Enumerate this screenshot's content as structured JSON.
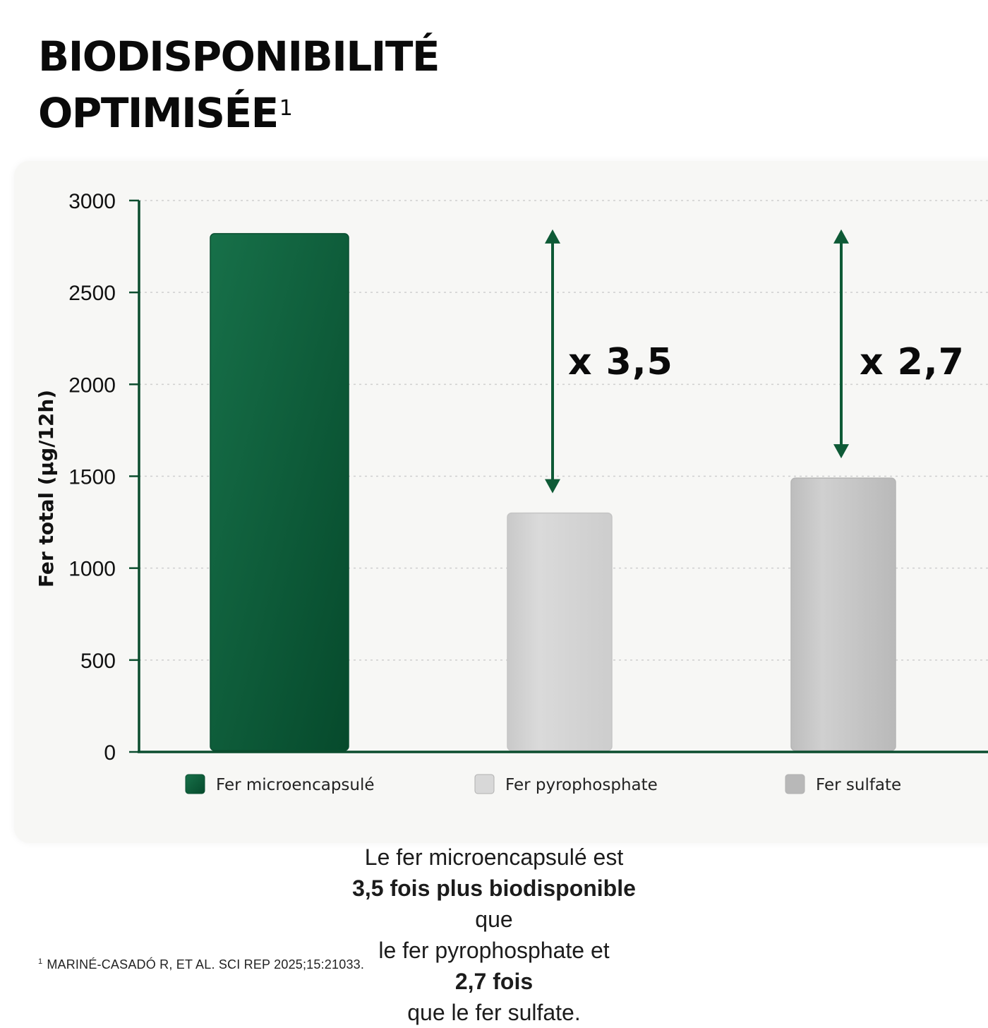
{
  "title": {
    "line1": "BIODISPONIBILITÉ",
    "line2": "OPTIMISÉE",
    "sup": "1"
  },
  "chart_data": {
    "type": "bar",
    "ylabel": "Fer total (µg/12h)",
    "ylim": [
      0,
      3000
    ],
    "yticks": [
      0,
      500,
      1000,
      1500,
      2000,
      2500,
      3000
    ],
    "grid": true,
    "legend_position": "bottom",
    "categories": [
      "Fer microencapsulé",
      "Fer pyrophosphate",
      "Fer sulfate"
    ],
    "values": [
      2820,
      1300,
      1490
    ],
    "colors": [
      "#0d5c3b",
      "#d2d2d2",
      "#c4c4c4"
    ],
    "annotations": [
      {
        "text": "x 3,5",
        "from": 2820,
        "to": 1300,
        "category": "Fer pyrophosphate"
      },
      {
        "text": "x 2,7",
        "from": 2820,
        "to": 1490,
        "category": "Fer sulfate"
      }
    ]
  },
  "caption": {
    "l1a": "Le fer microencapsulé est ",
    "l1b": "3,5 fois plus biodisponible",
    "l1c": " que",
    "l2a": "le fer pyrophosphate et ",
    "l2b": "2,7 fois",
    "l2c": " que le fer sulfate."
  },
  "footnote": {
    "sup": "1",
    "text": "MARINÉ-CASADÓ R, ET AL. SCI REP 2025;15:21033."
  },
  "colors": {
    "accent": "#0d5c3b",
    "axis": "#0b4d2e",
    "arrow": "#0e5a36"
  }
}
